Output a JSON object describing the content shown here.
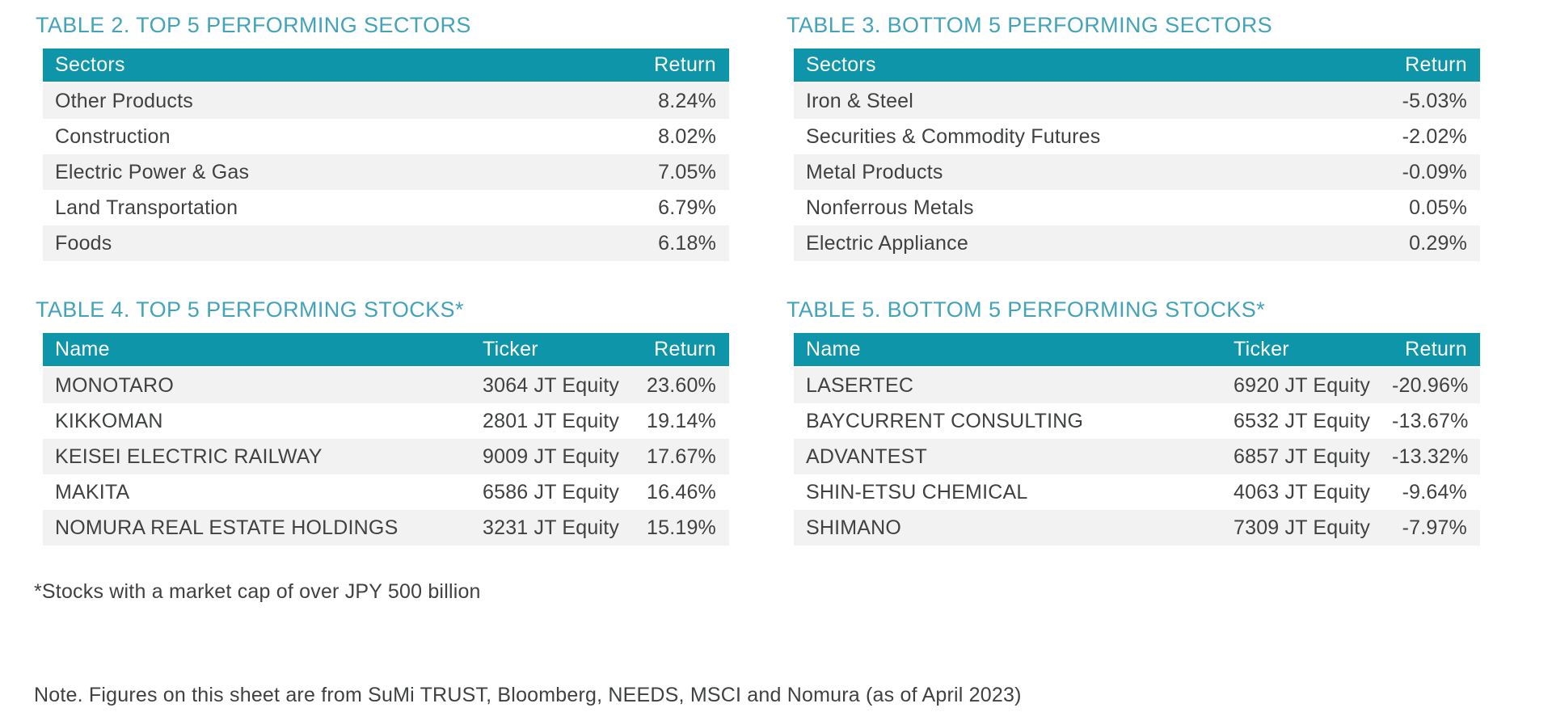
{
  "colors": {
    "header_bg": "#0f95aa",
    "title_text": "#42a3ba",
    "row_alt_bg": "#f2f2f2",
    "body_text": "#3f4142",
    "header_text": "#ffffff"
  },
  "tables": {
    "top_sectors": {
      "title": "TABLE 2. TOP 5 PERFORMING SECTORS",
      "columns": [
        "Sectors",
        "Return"
      ],
      "rows": [
        {
          "name": "Other Products",
          "return": "8.24%"
        },
        {
          "name": "Construction",
          "return": "8.02%"
        },
        {
          "name": "Electric Power & Gas",
          "return": "7.05%"
        },
        {
          "name": "Land Transportation",
          "return": "6.79%"
        },
        {
          "name": "Foods",
          "return": "6.18%"
        }
      ]
    },
    "bottom_sectors": {
      "title": "TABLE 3. BOTTOM 5 PERFORMING SECTORS",
      "columns": [
        "Sectors",
        "Return"
      ],
      "rows": [
        {
          "name": "Iron & Steel",
          "return": "-5.03%"
        },
        {
          "name": "Securities & Commodity Futures",
          "return": "-2.02%"
        },
        {
          "name": "Metal Products",
          "return": "-0.09%"
        },
        {
          "name": "Nonferrous Metals",
          "return": "0.05%"
        },
        {
          "name": "Electric Appliance",
          "return": "0.29%"
        }
      ]
    },
    "top_stocks": {
      "title": "TABLE 4. TOP 5 PERFORMING STOCKS*",
      "columns": [
        "Name",
        "Ticker",
        "Return"
      ],
      "rows": [
        {
          "name": "MONOTARO",
          "ticker": "3064 JT Equity",
          "return": "23.60%"
        },
        {
          "name": "KIKKOMAN",
          "ticker": "2801 JT Equity",
          "return": "19.14%"
        },
        {
          "name": "KEISEI ELECTRIC RAILWAY",
          "ticker": "9009 JT Equity",
          "return": "17.67%"
        },
        {
          "name": "MAKITA",
          "ticker": "6586 JT Equity",
          "return": "16.46%"
        },
        {
          "name": "NOMURA REAL ESTATE HOLDINGS",
          "ticker": "3231 JT Equity",
          "return": "15.19%"
        }
      ]
    },
    "bottom_stocks": {
      "title": "TABLE 5. BOTTOM 5 PERFORMING STOCKS*",
      "columns": [
        "Name",
        "Ticker",
        "Return"
      ],
      "rows": [
        {
          "name": "LASERTEC",
          "ticker": "6920 JT Equity",
          "return": "-20.96%"
        },
        {
          "name": "BAYCURRENT CONSULTING",
          "ticker": "6532 JT Equity",
          "return": "-13.67%"
        },
        {
          "name": "ADVANTEST",
          "ticker": "6857 JT Equity",
          "return": "-13.32%"
        },
        {
          "name": "SHIN-ETSU CHEMICAL",
          "ticker": "4063 JT Equity",
          "return": "-9.64%"
        },
        {
          "name": "SHIMANO",
          "ticker": "7309 JT Equity",
          "return": "-7.97%"
        }
      ]
    }
  },
  "footnotes": {
    "market_cap": "*Stocks with a market cap of over JPY 500 billion",
    "source_note": "Note. Figures on this sheet are from SuMi TRUST, Bloomberg, NEEDS, MSCI and Nomura (as of April 2023)"
  }
}
